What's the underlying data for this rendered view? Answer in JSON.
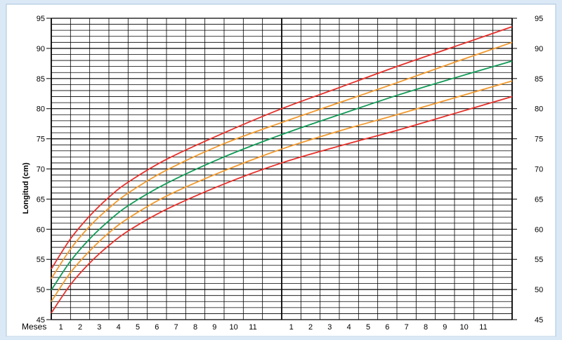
{
  "chart_data": {
    "type": "line",
    "ylabel": "Longitud (cm)",
    "xlabel": "Meses",
    "ylim": [
      45,
      95
    ],
    "y_ticks": [
      45,
      50,
      55,
      60,
      65,
      70,
      75,
      80,
      85,
      90,
      95
    ],
    "x_tick_labels": [
      "1",
      "2",
      "3",
      "4",
      "5",
      "6",
      "7",
      "8",
      "9",
      "10",
      "11",
      "",
      "1",
      "2",
      "3",
      "4",
      "5",
      "6",
      "7",
      "8",
      "9",
      "10",
      "11"
    ],
    "x_range_months": [
      0,
      24
    ],
    "grid": true,
    "series": [
      {
        "color": "#e8302a",
        "x": [
          0,
          1,
          2,
          3,
          4,
          6,
          9,
          12,
          15,
          18,
          21,
          24
        ],
        "values": [
          53.4,
          58.4,
          62.2,
          65.3,
          67.8,
          71.6,
          76.0,
          80.0,
          83.5,
          87.0,
          90.3,
          93.6
        ]
      },
      {
        "color": "#f39a2e",
        "x": [
          0,
          1,
          2,
          3,
          4,
          6,
          9,
          12,
          15,
          18,
          21,
          24
        ],
        "values": [
          51.8,
          56.7,
          60.5,
          63.5,
          66.0,
          69.8,
          74.2,
          77.7,
          81.0,
          84.3,
          87.7,
          91.0
        ]
      },
      {
        "color": "#119b57",
        "x": [
          0,
          1,
          2,
          3,
          4,
          6,
          9,
          12,
          15,
          18,
          21,
          24
        ],
        "values": [
          49.9,
          54.7,
          58.4,
          61.4,
          63.9,
          67.6,
          72.0,
          75.7,
          79.0,
          82.2,
          85.1,
          87.9
        ]
      },
      {
        "color": "#f39a2e",
        "x": [
          0,
          1,
          2,
          3,
          4,
          6,
          9,
          12,
          15,
          18,
          21,
          24
        ],
        "values": [
          48.0,
          52.8,
          56.4,
          59.4,
          61.8,
          65.5,
          69.7,
          73.3,
          76.3,
          79.0,
          81.8,
          84.6
        ]
      },
      {
        "color": "#e8302a",
        "x": [
          0,
          1,
          2,
          3,
          4,
          6,
          9,
          12,
          15,
          18,
          21,
          24
        ],
        "values": [
          46.1,
          50.8,
          54.4,
          57.3,
          59.7,
          63.3,
          67.5,
          71.0,
          73.8,
          76.4,
          79.2,
          82.0
        ]
      }
    ]
  }
}
